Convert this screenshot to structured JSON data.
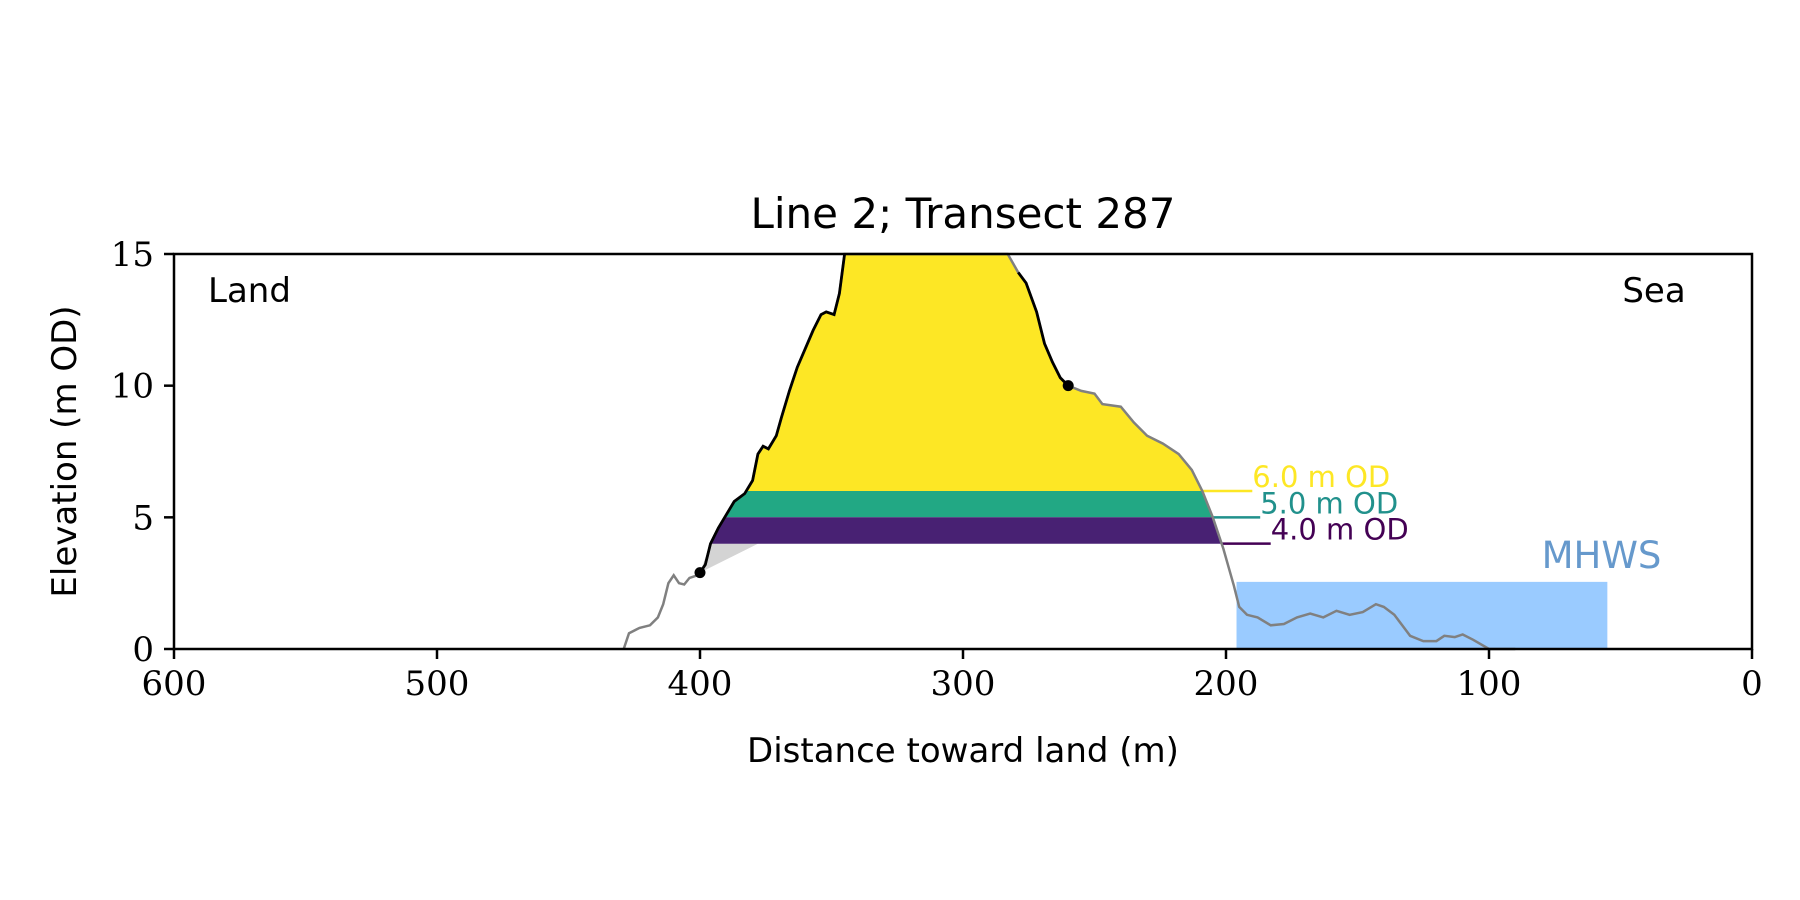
{
  "chart_data": {
    "type": "area",
    "title": "Line 2; Transect 287",
    "xlabel": "Distance toward land (m)",
    "ylabel": "Elevation (m OD)",
    "xlim": [
      600,
      0
    ],
    "ylim": [
      0,
      15
    ],
    "x_ticks": [
      600,
      500,
      400,
      300,
      200,
      100,
      0
    ],
    "y_ticks": [
      0,
      5,
      10,
      15
    ],
    "annotations": {
      "land": "Land",
      "sea": "Sea"
    },
    "profile": [
      [
        429,
        0
      ],
      [
        427,
        0.6
      ],
      [
        423,
        0.8
      ],
      [
        419,
        0.9
      ],
      [
        416,
        1.2
      ],
      [
        414,
        1.7
      ],
      [
        412,
        2.5
      ],
      [
        410,
        2.8
      ],
      [
        408,
        2.5
      ],
      [
        406,
        2.45
      ],
      [
        404,
        2.7
      ],
      [
        401,
        2.8
      ],
      [
        400,
        2.9
      ],
      [
        398,
        3.2
      ],
      [
        396,
        4.0
      ],
      [
        393,
        4.6
      ],
      [
        390,
        5.1
      ],
      [
        387,
        5.6
      ],
      [
        383,
        5.9
      ],
      [
        380,
        6.4
      ],
      [
        378,
        7.4
      ],
      [
        376,
        7.7
      ],
      [
        374,
        7.6
      ],
      [
        371,
        8.1
      ],
      [
        369,
        8.8
      ],
      [
        366,
        9.8
      ],
      [
        363,
        10.7
      ],
      [
        360,
        11.4
      ],
      [
        357,
        12.1
      ],
      [
        354,
        12.7
      ],
      [
        352,
        12.8
      ],
      [
        349,
        12.7
      ],
      [
        347,
        13.5
      ],
      [
        345,
        15
      ],
      [
        283,
        15
      ],
      [
        279,
        14.3
      ],
      [
        276,
        13.9
      ],
      [
        272,
        12.8
      ],
      [
        269,
        11.6
      ],
      [
        266,
        10.9
      ],
      [
        263,
        10.3
      ],
      [
        260,
        10.0
      ],
      [
        255,
        9.8
      ],
      [
        250,
        9.7
      ],
      [
        247,
        9.3
      ],
      [
        240,
        9.2
      ],
      [
        235,
        8.6
      ],
      [
        230,
        8.1
      ],
      [
        224,
        7.8
      ],
      [
        218,
        7.4
      ],
      [
        213,
        6.8
      ],
      [
        209,
        6.0
      ],
      [
        205,
        5.0
      ],
      [
        201,
        3.8
      ],
      [
        197,
        2.4
      ],
      [
        195,
        1.6
      ],
      [
        192,
        1.3
      ],
      [
        188,
        1.2
      ],
      [
        183,
        0.9
      ],
      [
        178,
        0.95
      ],
      [
        173,
        1.2
      ],
      [
        168,
        1.35
      ],
      [
        163,
        1.2
      ],
      [
        158,
        1.45
      ],
      [
        153,
        1.3
      ],
      [
        148,
        1.4
      ],
      [
        143,
        1.7
      ],
      [
        140,
        1.6
      ],
      [
        136,
        1.3
      ],
      [
        133,
        0.9
      ],
      [
        130,
        0.5
      ],
      [
        125,
        0.3
      ],
      [
        120,
        0.3
      ],
      [
        117,
        0.5
      ],
      [
        113,
        0.45
      ],
      [
        110,
        0.55
      ],
      [
        106,
        0.35
      ],
      [
        100,
        0
      ],
      [
        90,
        0
      ]
    ],
    "dune_toe": {
      "x": 400,
      "y": 2.9
    },
    "dune_crest": {
      "x": 260,
      "y": 10.0
    },
    "dune_outline_x_range": [
      400,
      260
    ],
    "base_wedge": [
      [
        400,
        2.9
      ],
      [
        396,
        4.0
      ],
      [
        378,
        4.0
      ]
    ],
    "series": [
      {
        "name": "6.0 m OD",
        "level": 6.0,
        "color": "#fde725"
      },
      {
        "name": "5.0 m OD",
        "level": 5.0,
        "color": "#21918c"
      },
      {
        "name": "4.0 m OD",
        "level": 4.0,
        "color": "#440154"
      }
    ],
    "level_fill_colors": [
      "#fde725",
      "#22a884",
      "#482173"
    ],
    "level_label_x": [
      190,
      187,
      183
    ],
    "mhws": {
      "label": "MHWS",
      "elevation": 2.55,
      "x_range": [
        196,
        55
      ],
      "fill": "#9acbff",
      "label_color": "#6699cc"
    },
    "colors": {
      "profile_line": "#808080",
      "dune_outline": "#000000",
      "wedge": "#d4d4d4"
    }
  }
}
